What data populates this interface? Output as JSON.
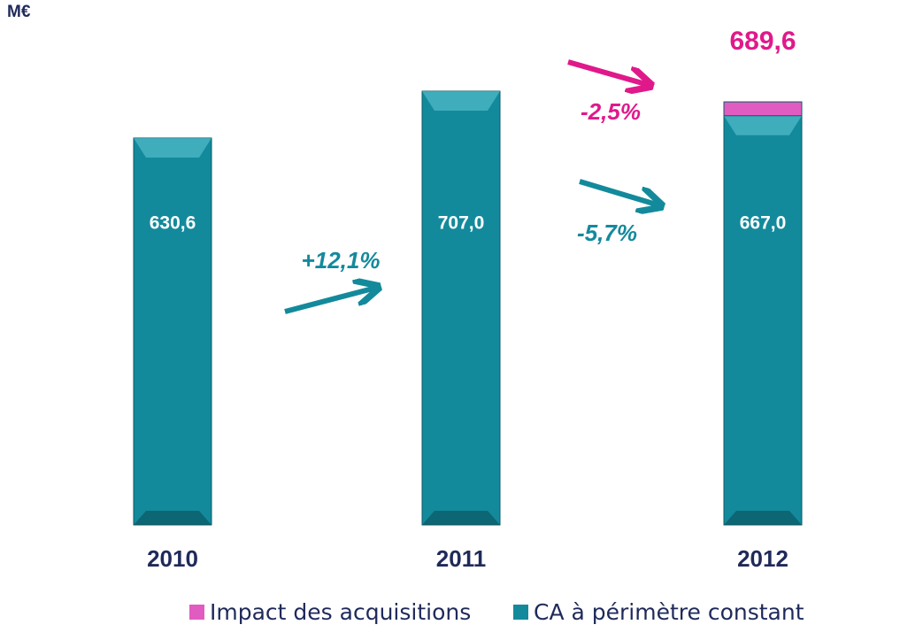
{
  "chart_data": {
    "type": "stacked_bar",
    "unit_label": "M€",
    "categories": [
      "2010",
      "2011",
      "2012"
    ],
    "series": [
      {
        "name": "CA à périmètre constant",
        "color": "#138a9c",
        "values": [
          630.6,
          707.0,
          667.0
        ],
        "value_labels": [
          "630,6",
          "707,0",
          "667,0"
        ]
      },
      {
        "name": "Impact des acquisitions",
        "color": "#e05cc0",
        "values": [
          null,
          null,
          22.6
        ]
      }
    ],
    "total_labels": [
      null,
      null,
      "689,6"
    ],
    "annotations": [
      {
        "text": "+12,1%",
        "color": "#138a9c"
      },
      {
        "text": "-2,5%",
        "color": "#e0198a"
      },
      {
        "text": "-5,7%",
        "color": "#138a9c"
      }
    ],
    "legend": "bottom"
  }
}
